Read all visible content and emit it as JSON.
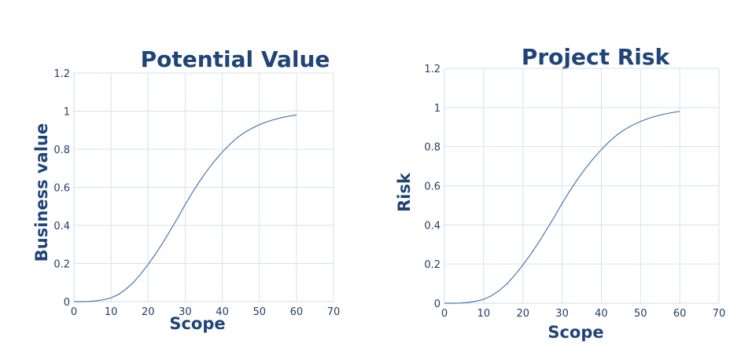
{
  "colors": {
    "line": "#4a78b0",
    "text": "#1f4478",
    "grid": "#d4e2f0"
  },
  "chart_data": [
    {
      "type": "line",
      "title": "Potential Value",
      "xlabel": "Scope",
      "ylabel": "Business value",
      "xlim": [
        0,
        70
      ],
      "ylim": [
        0,
        1.2
      ],
      "xticks": [
        "0",
        "10",
        "20",
        "30",
        "40",
        "50",
        "60",
        "70"
      ],
      "yticks": [
        "0",
        "0.2",
        "0.4",
        "0.6",
        "0.8",
        "1",
        "1.2"
      ],
      "grid": true,
      "series": [
        {
          "x": [
            0,
            2,
            4,
            6,
            8,
            10,
            12,
            14,
            16,
            18,
            20,
            22,
            24,
            26,
            28,
            30,
            32,
            34,
            36,
            38,
            40,
            42,
            44,
            46,
            48,
            50,
            52,
            54,
            56,
            58,
            60
          ],
          "values": [
            0,
            0.0001,
            0.001,
            0.004,
            0.01,
            0.02,
            0.038,
            0.065,
            0.1,
            0.145,
            0.195,
            0.25,
            0.31,
            0.375,
            0.44,
            0.51,
            0.575,
            0.635,
            0.69,
            0.74,
            0.785,
            0.825,
            0.86,
            0.888,
            0.91,
            0.929,
            0.944,
            0.956,
            0.966,
            0.974,
            0.98
          ]
        }
      ]
    },
    {
      "type": "line",
      "title": "Project Risk",
      "xlabel": "Scope",
      "ylabel": "Risk",
      "xlim": [
        0,
        70
      ],
      "ylim": [
        0,
        1.2
      ],
      "xticks": [
        "0",
        "10",
        "20",
        "30",
        "40",
        "50",
        "60",
        "70"
      ],
      "yticks": [
        "0",
        "0.2",
        "0.4",
        "0.6",
        "0.8",
        "1",
        "1.2"
      ],
      "grid": true,
      "series": [
        {
          "x": [
            0,
            2,
            4,
            6,
            8,
            10,
            12,
            14,
            16,
            18,
            20,
            22,
            24,
            26,
            28,
            30,
            32,
            34,
            36,
            38,
            40,
            42,
            44,
            46,
            48,
            50,
            52,
            54,
            56,
            58,
            60
          ],
          "values": [
            0,
            0.0001,
            0.001,
            0.004,
            0.01,
            0.02,
            0.038,
            0.065,
            0.1,
            0.145,
            0.195,
            0.25,
            0.31,
            0.375,
            0.44,
            0.51,
            0.575,
            0.635,
            0.69,
            0.74,
            0.785,
            0.825,
            0.86,
            0.888,
            0.91,
            0.929,
            0.944,
            0.956,
            0.966,
            0.974,
            0.98
          ]
        }
      ]
    }
  ]
}
